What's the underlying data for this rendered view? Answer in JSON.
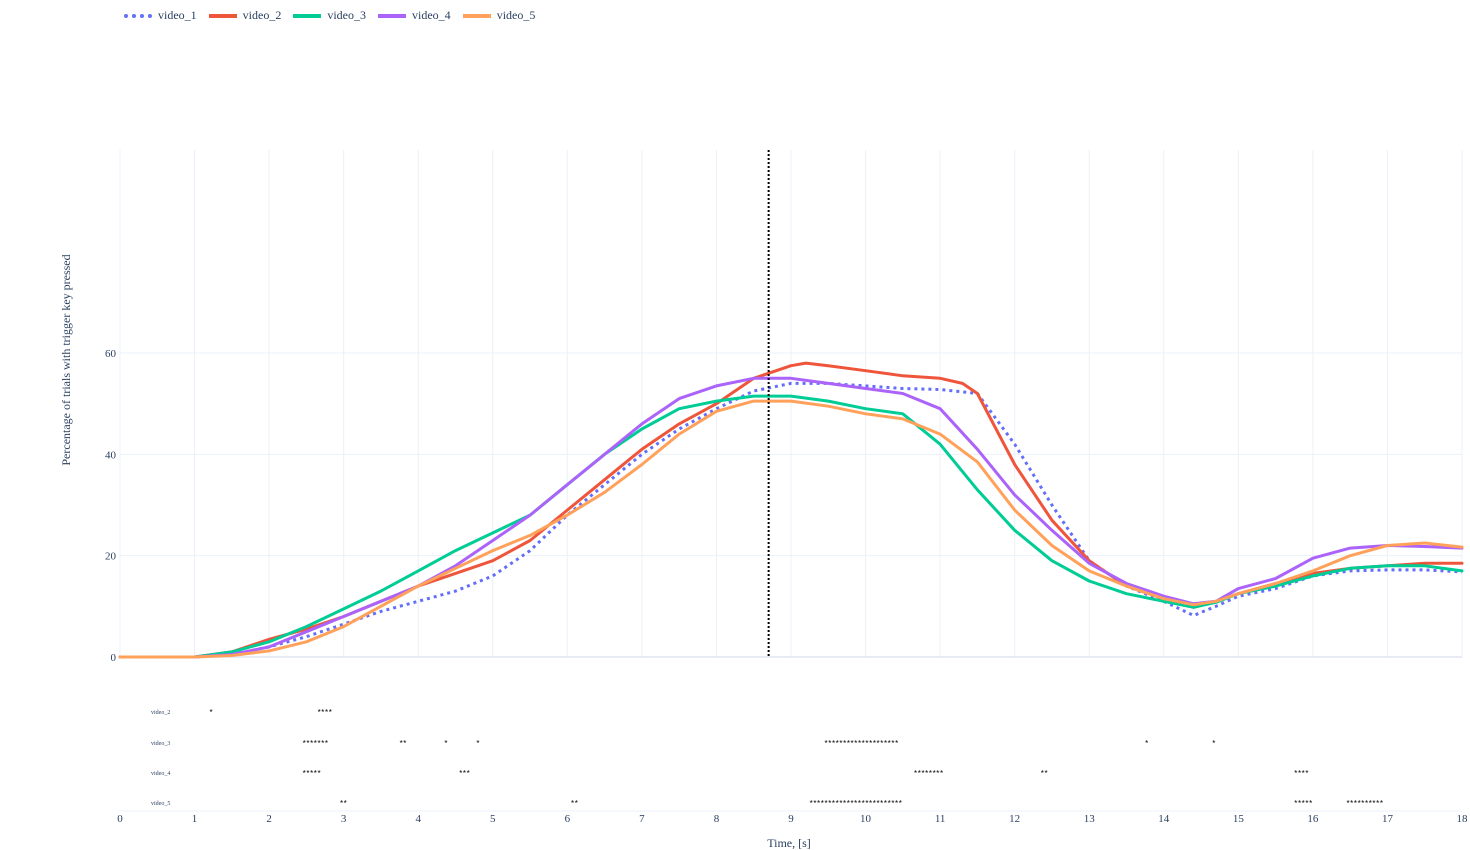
{
  "chart_data": {
    "type": "line",
    "xlabel": "Time, [s]",
    "ylabel": "Percentage of trials with trigger key pressed",
    "xlim": [
      0,
      18
    ],
    "ylim": [
      0,
      60
    ],
    "xticks": [
      0,
      1,
      2,
      3,
      4,
      5,
      6,
      7,
      8,
      9,
      10,
      11,
      12,
      13,
      14,
      15,
      16,
      17,
      18
    ],
    "yticks": [
      0,
      20,
      40,
      60
    ],
    "vline_x": 8.7,
    "grid": true,
    "legend_position": "top-left",
    "series": [
      {
        "name": "video_1",
        "color": "#636efa",
        "dash": "dot",
        "x": [
          0,
          1,
          1.5,
          2,
          2.5,
          3,
          3.5,
          4,
          4.5,
          5,
          5.5,
          6,
          6.5,
          7,
          7.5,
          8,
          8.5,
          9,
          9.5,
          10,
          10.5,
          11,
          11.5,
          12,
          12.5,
          13,
          13.5,
          14,
          14.4,
          14.7,
          15,
          15.5,
          16,
          16.5,
          17,
          17.5,
          18
        ],
        "y": [
          0,
          0,
          0.5,
          2,
          4,
          6.5,
          9,
          11,
          13,
          16,
          21,
          28,
          34,
          40,
          45,
          49,
          52.5,
          54,
          54,
          53.5,
          53,
          52.8,
          52,
          42,
          30,
          19,
          14,
          11,
          8.2,
          10,
          12,
          13.5,
          16,
          17,
          17.2,
          17.2,
          16.8
        ]
      },
      {
        "name": "video_2",
        "color": "#ef553b",
        "dash": "solid",
        "x": [
          0,
          1,
          1.5,
          2,
          2.5,
          3,
          3.5,
          4,
          4.5,
          5,
          5.5,
          6,
          6.5,
          7,
          7.5,
          8,
          8.5,
          9,
          9.2,
          9.5,
          10,
          10.5,
          11,
          11.3,
          11.5,
          12,
          12.5,
          13,
          13.5,
          14,
          14.4,
          14.7,
          15,
          15.5,
          16,
          16.5,
          17,
          17.5,
          18
        ],
        "y": [
          0,
          0,
          1,
          3.5,
          5.5,
          8,
          11,
          14,
          16.5,
          19,
          23,
          29,
          35,
          41,
          46,
          50,
          55,
          57.5,
          58,
          57.5,
          56.5,
          55.5,
          55,
          54,
          52,
          38,
          27,
          19,
          14,
          11.5,
          9.8,
          11,
          12.5,
          14.5,
          16.5,
          17.5,
          18,
          18.5,
          18.5
        ]
      },
      {
        "name": "video_3",
        "color": "#00cc96",
        "dash": "solid",
        "x": [
          0,
          1,
          1.5,
          2,
          2.5,
          3,
          3.5,
          4,
          4.5,
          5,
          5.5,
          6,
          6.5,
          7,
          7.5,
          8,
          8.5,
          9,
          9.5,
          10,
          10.5,
          11,
          11.5,
          12,
          12.5,
          13,
          13.5,
          14,
          14.4,
          14.7,
          15,
          15.5,
          16,
          16.5,
          17,
          17.5,
          18
        ],
        "y": [
          0,
          0,
          1,
          3,
          6,
          9.5,
          13,
          17,
          21,
          24.5,
          28,
          34,
          40,
          45,
          49,
          50.5,
          51.5,
          51.5,
          50.5,
          49,
          48,
          42,
          33,
          25,
          19,
          15,
          12.5,
          11,
          9.8,
          10.8,
          12.5,
          14,
          16,
          17.5,
          18,
          18,
          17
        ]
      },
      {
        "name": "video_4",
        "color": "#ab63fa",
        "dash": "solid",
        "x": [
          0,
          1,
          1.5,
          2,
          2.5,
          3,
          3.5,
          4,
          4.5,
          5,
          5.5,
          6,
          6.5,
          7,
          7.5,
          8,
          8.5,
          9,
          9.5,
          10,
          10.5,
          11,
          11.5,
          12,
          12.5,
          13,
          13.5,
          14,
          14.4,
          14.7,
          15,
          15.5,
          16,
          16.5,
          17,
          17.5,
          18
        ],
        "y": [
          0,
          0,
          0.5,
          2,
          5,
          8,
          11,
          14,
          18,
          23,
          28,
          34,
          40,
          46,
          51,
          53.5,
          55,
          55,
          54,
          53,
          52,
          49,
          41,
          32,
          25,
          18.5,
          14.5,
          12,
          10.5,
          11,
          13.5,
          15.5,
          19.5,
          21.5,
          22,
          21.8,
          21.5
        ]
      },
      {
        "name": "video_5",
        "color": "#ffa15a",
        "dash": "solid",
        "x": [
          0,
          1,
          1.5,
          2,
          2.5,
          3,
          3.5,
          4,
          4.5,
          5,
          5.5,
          6,
          6.5,
          7,
          7.5,
          8,
          8.5,
          9,
          9.5,
          10,
          10.5,
          11,
          11.5,
          12,
          12.5,
          13,
          13.5,
          14,
          14.4,
          14.7,
          15,
          15.5,
          16,
          16.5,
          17,
          17.5,
          18
        ],
        "y": [
          0,
          0,
          0.3,
          1.2,
          3,
          6,
          10,
          14,
          17.5,
          21,
          24,
          28,
          32.5,
          38,
          44,
          48.5,
          50.5,
          50.5,
          49.5,
          48,
          47,
          44,
          38.5,
          29,
          22,
          17,
          14,
          11.5,
          10.3,
          11,
          12.5,
          14.5,
          17,
          20,
          22,
          22.5,
          21.7
        ]
      }
    ],
    "significance_rows": [
      {
        "name": "video_2",
        "marks": [
          "*"
        ],
        "x": [
          1.2
        ]
      },
      {
        "name": "video_2",
        "marks": [
          "****"
        ],
        "x": [
          2.65
        ]
      },
      {
        "name": "video_3",
        "marks": [
          "*******"
        ],
        "x": [
          2.45
        ]
      },
      {
        "name": "video_3",
        "marks": [
          "**"
        ],
        "x": [
          3.75
        ]
      },
      {
        "name": "video_3",
        "marks": [
          "*"
        ],
        "x": [
          4.35
        ]
      },
      {
        "name": "video_3",
        "marks": [
          "*"
        ],
        "x": [
          4.78
        ]
      },
      {
        "name": "video_3",
        "marks": [
          "********************"
        ],
        "x": [
          9.45
        ]
      },
      {
        "name": "video_3",
        "marks": [
          "*"
        ],
        "x": [
          13.75
        ]
      },
      {
        "name": "video_3",
        "marks": [
          "*"
        ],
        "x": [
          14.65
        ]
      },
      {
        "name": "video_4",
        "marks": [
          "*****"
        ],
        "x": [
          2.45
        ]
      },
      {
        "name": "video_4",
        "marks": [
          "***"
        ],
        "x": [
          4.55
        ]
      },
      {
        "name": "video_4",
        "marks": [
          "********"
        ],
        "x": [
          10.65
        ]
      },
      {
        "name": "video_4",
        "marks": [
          "**"
        ],
        "x": [
          12.35
        ]
      },
      {
        "name": "video_4",
        "marks": [
          "****"
        ],
        "x": [
          15.75
        ]
      },
      {
        "name": "video_5",
        "marks": [
          "**"
        ],
        "x": [
          2.95
        ]
      },
      {
        "name": "video_5",
        "marks": [
          "**"
        ],
        "x": [
          6.05
        ]
      },
      {
        "name": "video_5",
        "marks": [
          "*************************"
        ],
        "x": [
          9.25
        ]
      },
      {
        "name": "video_5",
        "marks": [
          "*****"
        ],
        "x": [
          15.75
        ]
      },
      {
        "name": "video_5",
        "marks": [
          "**********"
        ],
        "x": [
          16.45
        ]
      }
    ],
    "significance_labels": [
      "video_2",
      "video_3",
      "video_4",
      "video_5"
    ]
  }
}
